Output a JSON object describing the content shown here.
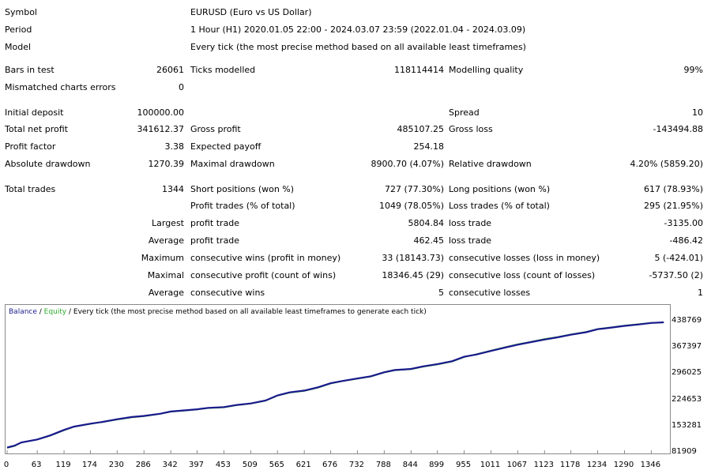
{
  "info": {
    "symbol_label": "Symbol",
    "symbol_value": "EURUSD (Euro vs US Dollar)",
    "period_label": "Period",
    "period_value": "1 Hour (H1) 2020.01.05 22:00 - 2024.03.07 23:59 (2022.01.04 - 2024.03.09)",
    "model_label": "Model",
    "model_value": "Every tick (the most precise method based on all available least timeframes)"
  },
  "stats": {
    "bars_label": "Bars in test",
    "bars_value": "26061",
    "ticks_label": "Ticks modelled",
    "ticks_value": "118114414",
    "quality_label": "Modelling quality",
    "quality_value": "99%",
    "mismatch_label": "Mismatched charts errors",
    "mismatch_value": "0",
    "deposit_label": "Initial deposit",
    "deposit_value": "100000.00",
    "spread_label": "Spread",
    "spread_value": "10",
    "netprofit_label": "Total net profit",
    "netprofit_value": "341612.37",
    "grossprofit_label": "Gross profit",
    "grossprofit_value": "485107.25",
    "grossloss_label": "Gross loss",
    "grossloss_value": "-143494.88",
    "pf_label": "Profit factor",
    "pf_value": "3.38",
    "payoff_label": "Expected payoff",
    "payoff_value": "254.18",
    "absdd_label": "Absolute drawdown",
    "absdd_value": "1270.39",
    "maxdd_label": "Maximal drawdown",
    "maxdd_value": "8900.70 (4.07%)",
    "reldd_label": "Relative drawdown",
    "reldd_value": "4.20% (5859.20)",
    "trades_label": "Total trades",
    "trades_value": "1344",
    "short_label": "Short positions (won %)",
    "short_value": "727 (77.30%)",
    "long_label": "Long positions (won %)",
    "long_value": "617 (78.93%)",
    "ptrades_label": "Profit trades (% of total)",
    "ptrades_value": "1049 (78.05%)",
    "ltrades_label": "Loss trades (% of total)",
    "ltrades_value": "295 (21.95%)",
    "largest_label": "Largest",
    "largest_profit_label": "profit trade",
    "largest_profit_value": "5804.84",
    "largest_loss_label": "loss trade",
    "largest_loss_value": "-3135.00",
    "average_label": "Average",
    "average_profit_label": "profit trade",
    "average_profit_value": "462.45",
    "average_loss_label": "loss trade",
    "average_loss_value": "-486.42",
    "maximum_label": "Maximum",
    "max_wins_label": "consecutive wins (profit in money)",
    "max_wins_value": "33 (18143.73)",
    "max_losses_label": "consecutive losses (loss in money)",
    "max_losses_value": "5 (-424.01)",
    "maximal_label": "Maximal",
    "maximal_profit_label": "consecutive profit (count of wins)",
    "maximal_profit_value": "18346.45 (29)",
    "maximal_loss_label": "consecutive loss (count of losses)",
    "maximal_loss_value": "-5737.50 (2)",
    "avgcons_label": "Average",
    "avg_wins_label": "consecutive wins",
    "avg_wins_value": "5",
    "avg_losses_label": "consecutive losses",
    "avg_losses_value": "1"
  },
  "chart_legend": {
    "balance": "Balance",
    "sep1": " / ",
    "equity": "Equity",
    "sep2": " / ",
    "mode": "Every tick (the most precise method based on all available least timeframes to generate each tick)"
  },
  "colors": {
    "balance": "#1a1a8c",
    "equity": "#2eaa2e",
    "legend_balance": "#1a1a8c",
    "legend_equity": "#2eaa2e"
  },
  "chart_data": {
    "type": "line",
    "xlabel": "",
    "ylabel": "",
    "x_ticks": [
      "0",
      "63",
      "119",
      "174",
      "230",
      "286",
      "342",
      "397",
      "453",
      "509",
      "565",
      "621",
      "676",
      "732",
      "788",
      "844",
      "899",
      "955",
      "1011",
      "1067",
      "1123",
      "1178",
      "1234",
      "1290",
      "1346"
    ],
    "y_ticks": [
      "438769",
      "367397",
      "296025",
      "224653",
      "153281",
      "81909"
    ],
    "xlim": [
      0,
      1380
    ],
    "ylim": [
      81909,
      438769
    ],
    "series": [
      {
        "name": "Balance",
        "x": [
          0,
          15,
          30,
          63,
          90,
          119,
          140,
          174,
          200,
          230,
          260,
          286,
          320,
          342,
          370,
          397,
          420,
          453,
          480,
          509,
          540,
          565,
          590,
          621,
          650,
          676,
          700,
          732,
          760,
          788,
          810,
          844,
          870,
          899,
          930,
          955,
          980,
          1011,
          1040,
          1067,
          1095,
          1123,
          1150,
          1178,
          1210,
          1234,
          1260,
          1290,
          1320,
          1346,
          1372
        ],
        "values": [
          98000,
          103000,
          112000,
          120000,
          131000,
          146000,
          155000,
          163000,
          168000,
          175000,
          181000,
          184000,
          190000,
          196000,
          199000,
          202000,
          206000,
          208000,
          214000,
          218000,
          226000,
          240000,
          248000,
          253000,
          262000,
          273000,
          279000,
          286000,
          292000,
          303000,
          309000,
          312000,
          319000,
          325000,
          333000,
          345000,
          351000,
          361000,
          370000,
          378000,
          385000,
          392000,
          398000,
          405000,
          412000,
          420000,
          424000,
          429000,
          433000,
          437000,
          438769
        ]
      },
      {
        "name": "Equity",
        "x": [
          0,
          15,
          30,
          63,
          90,
          119,
          140,
          174,
          200,
          230,
          260,
          286,
          320,
          342,
          370,
          397,
          420,
          453,
          480,
          509,
          540,
          565,
          590,
          621,
          650,
          676,
          700,
          732,
          760,
          788,
          810,
          844,
          870,
          899,
          930,
          955,
          980,
          1011,
          1040,
          1067,
          1095,
          1123,
          1150,
          1178,
          1210,
          1234,
          1260,
          1290,
          1320,
          1346,
          1372
        ],
        "values": [
          97000,
          102000,
          111500,
          119500,
          130000,
          145000,
          154500,
          162000,
          167500,
          174000,
          180000,
          183000,
          189500,
          195500,
          198000,
          201500,
          205000,
          207000,
          213000,
          217500,
          225000,
          239000,
          247000,
          252000,
          261000,
          272000,
          278500,
          285000,
          291000,
          302000,
          308000,
          311000,
          318000,
          324000,
          332000,
          344000,
          352000,
          362000,
          371000,
          379500,
          386000,
          393500,
          399000,
          406000,
          413000,
          421000,
          425000,
          430000,
          434000,
          437500,
          438500
        ]
      }
    ]
  }
}
